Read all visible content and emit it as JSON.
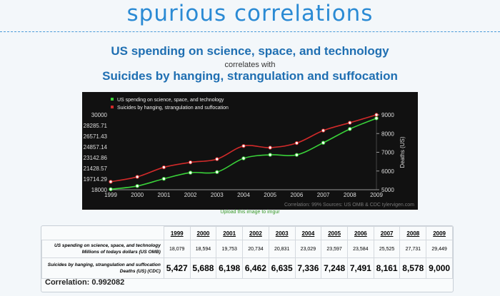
{
  "site_title": "spurious correlations",
  "headline": {
    "series_a": "US spending on science, space, and technology",
    "connector": "correlates with",
    "series_b": "Suicides by hanging, strangulation and suffocation"
  },
  "chart_data": {
    "type": "line",
    "x": [
      "1999",
      "2000",
      "2001",
      "2002",
      "2003",
      "2004",
      "2005",
      "2006",
      "2007",
      "2008",
      "2009"
    ],
    "series": [
      {
        "name": "US spending on science, space, and technology",
        "axis": "left",
        "color": "#39d139",
        "values": [
          18079,
          18594,
          19753,
          20734,
          20831,
          23029,
          23597,
          23584,
          25525,
          27731,
          29449
        ]
      },
      {
        "name": "Suicides by hanging, strangulation and suffocation",
        "axis": "right",
        "color": "#d22a2a",
        "values": [
          5427,
          5688,
          6198,
          6462,
          6635,
          7336,
          7248,
          7491,
          8161,
          8578,
          9000
        ]
      }
    ],
    "y_left": {
      "range": [
        18000,
        30000
      ],
      "ticks": [
        "30000",
        "28285.71",
        "26571.43",
        "24857.14",
        "23142.86",
        "21428.57",
        "19714.29",
        "18000"
      ]
    },
    "y_right": {
      "range": [
        5000,
        9000
      ],
      "ticks": [
        "9000",
        "8000",
        "7000",
        "6000",
        "5000"
      ],
      "label": "Deaths (US)"
    },
    "credits": "Correlation: 99%    Sources: US OMB & CDC    tylervigen.com",
    "legend_position": "top-left"
  },
  "upload_link": "Upload this image to imgur",
  "table": {
    "years": [
      "1999",
      "2000",
      "2001",
      "2002",
      "2003",
      "2004",
      "2005",
      "2006",
      "2007",
      "2008",
      "2009"
    ],
    "row_a": {
      "label_1": "US spending on science, space, and technology",
      "label_2": "Millions of todays dollars (US OMB)",
      "values": [
        "18,079",
        "18,594",
        "19,753",
        "20,734",
        "20,831",
        "23,029",
        "23,597",
        "23,584",
        "25,525",
        "27,731",
        "29,449"
      ]
    },
    "row_b": {
      "label_1": "Suicides by hanging, strangulation and suffocation",
      "label_2": "Deaths (US) (CDC)",
      "values": [
        "5,427",
        "5,688",
        "6,198",
        "6,462",
        "6,635",
        "7,336",
        "7,248",
        "7,491",
        "8,161",
        "8,578",
        "9,000"
      ]
    },
    "correlation": "Correlation: 0.992082"
  }
}
